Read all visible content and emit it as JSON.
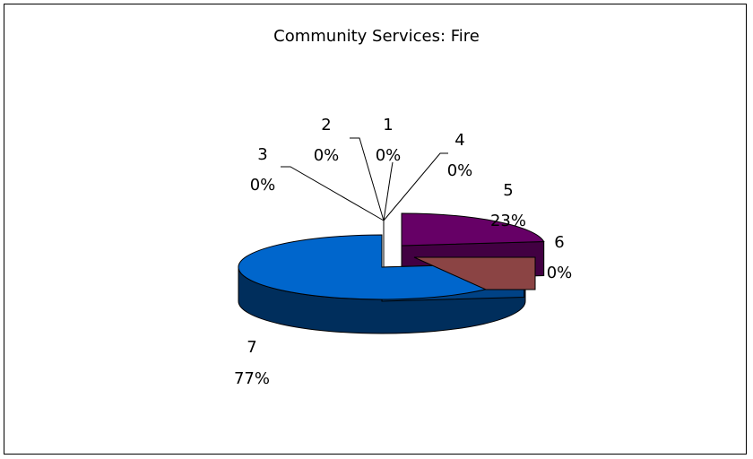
{
  "chart_data": {
    "type": "pie",
    "title": "Community Services: Fire",
    "categories": [
      "1",
      "2",
      "3",
      "4",
      "5",
      "6",
      "7"
    ],
    "values": [
      0,
      0,
      0,
      0,
      23,
      0,
      77
    ],
    "percent_labels": [
      "0%",
      "0%",
      "0%",
      "0%",
      "23%",
      "0%",
      "77%"
    ],
    "three_d": true,
    "exploded": true,
    "legend": "none",
    "colors": {
      "5": "#660066",
      "6": "#8B4444",
      "7": "#0066CC"
    }
  }
}
